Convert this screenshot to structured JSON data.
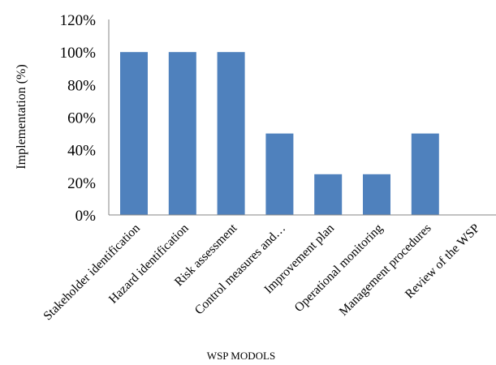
{
  "chart_data": {
    "type": "bar",
    "categories": [
      "Stakeholder identification",
      "Hazard identification",
      "Risk assessment",
      "Control measures and…",
      "Improvement plan",
      "Operational monitoring",
      "Management procedures",
      "Review of the WSP"
    ],
    "values": [
      100,
      100,
      100,
      50,
      25,
      25,
      50,
      0
    ],
    "ytick_labels": [
      "0%",
      "20%",
      "40%",
      "60%",
      "80%",
      "100%",
      "120%"
    ],
    "ylim": [
      0,
      120
    ],
    "xlabel": "WSP MODOLS",
    "ylabel": "Implementation (%)",
    "grid": false,
    "legend": "none",
    "bar_color": "#4f81bd",
    "axis_color": "#868686"
  }
}
